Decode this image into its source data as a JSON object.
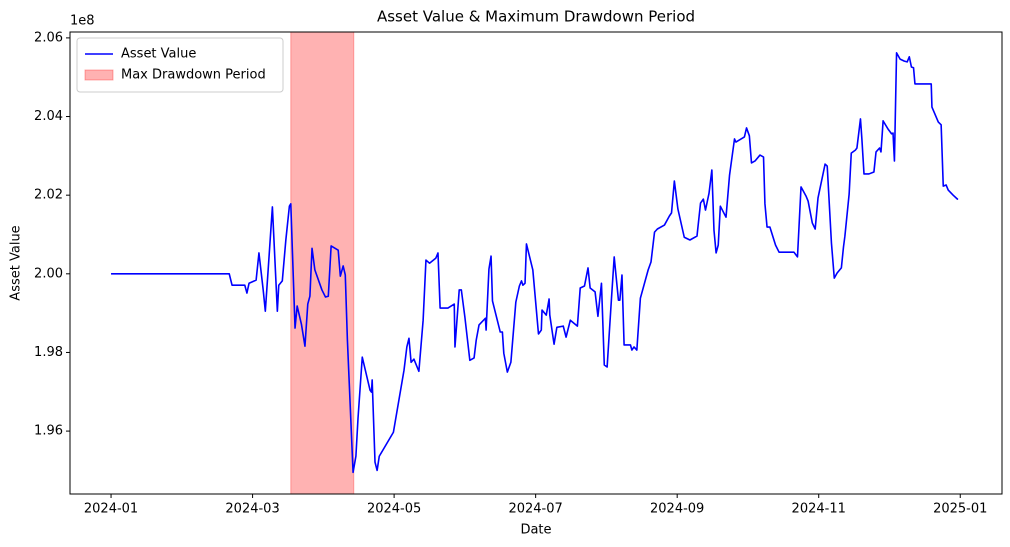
{
  "chart_data": {
    "type": "line",
    "title": "Asset Value & Maximum Drawdown Period",
    "xlabel": "Date",
    "ylabel": "Asset Value",
    "y_offset_label": "1e8",
    "x": [
      0,
      1.67,
      1.71,
      1.89,
      1.92,
      1.95,
      2.05,
      2.09,
      2.15,
      2.18,
      2.22,
      2.28,
      2.35,
      2.37,
      2.42,
      2.47,
      2.52,
      2.54,
      2.6,
      2.63,
      2.69,
      2.74,
      2.78,
      2.81,
      2.84,
      2.88,
      2.98,
      3.03,
      3.07,
      3.11,
      3.21,
      3.24,
      3.28,
      3.31,
      3.34,
      3.42,
      3.46,
      3.49,
      3.55,
      3.66,
      3.68,
      3.69,
      3.73,
      3.76,
      3.79,
      3.99,
      4.14,
      4.18,
      4.21,
      4.24,
      4.28,
      4.35,
      4.41,
      4.45,
      4.5,
      4.59,
      4.62,
      4.65,
      4.76,
      4.85,
      4.86,
      4.92,
      4.95,
      5.0,
      5.07,
      5.13,
      5.16,
      5.2,
      5.29,
      5.3,
      5.34,
      5.37,
      5.39,
      5.5,
      5.53,
      5.55,
      5.6,
      5.65,
      5.72,
      5.77,
      5.8,
      5.82,
      5.85,
      5.87,
      5.96,
      6.04,
      6.08,
      6.09,
      6.15,
      6.19,
      6.2,
      6.26,
      6.3,
      6.39,
      6.43,
      6.49,
      6.59,
      6.63,
      6.69,
      6.74,
      6.77,
      6.84,
      6.88,
      6.93,
      6.97,
      7.01,
      7.07,
      7.11,
      7.17,
      7.19,
      7.22,
      7.25,
      7.34,
      7.36,
      7.39,
      7.43,
      7.48,
      7.59,
      7.63,
      7.68,
      7.72,
      7.82,
      7.89,
      7.92,
      7.96,
      8.01,
      8.1,
      8.18,
      8.28,
      8.33,
      8.37,
      8.4,
      8.45,
      8.49,
      8.52,
      8.55,
      8.58,
      8.61,
      8.69,
      8.74,
      8.81,
      8.83,
      8.95,
      8.98,
      9.02,
      9.05,
      9.1,
      9.17,
      9.22,
      9.24,
      9.27,
      9.31,
      9.39,
      9.44,
      9.65,
      9.7,
      9.75,
      9.82,
      9.85,
      9.91,
      9.95,
      9.99,
      10.09,
      10.12,
      10.18,
      10.22,
      10.26,
      10.32,
      10.35,
      10.37,
      10.43,
      10.46,
      10.52,
      10.54,
      10.59,
      10.61,
      10.64,
      10.71,
      10.78,
      10.81,
      10.86,
      10.88,
      10.91,
      10.98,
      11.03,
      11.05,
      11.07,
      11.1,
      11.15,
      11.21,
      11.25,
      11.28,
      11.31,
      11.34,
      11.36,
      11.55,
      11.59,
      11.6,
      11.69,
      11.73,
      11.76,
      11.8,
      11.83,
      11.9,
      11.96,
      11.97
    ],
    "series": [
      {
        "name": "Asset Value",
        "color": "#0000ff",
        "values": [
          2.0,
          2.0,
          1.9971,
          1.9971,
          1.9951,
          1.9976,
          1.9984,
          2.0053,
          1.9959,
          1.9905,
          2.001,
          2.017,
          1.9905,
          1.9971,
          1.9982,
          2.0086,
          2.0172,
          2.0178,
          1.9862,
          1.9918,
          1.9872,
          1.9816,
          1.9923,
          1.9943,
          2.0065,
          2.001,
          1.9959,
          1.9941,
          1.9943,
          2.0071,
          2.006,
          1.9994,
          2.002,
          1.9997,
          1.9831,
          1.9495,
          1.9536,
          1.9633,
          1.9788,
          1.9704,
          1.9699,
          1.973,
          1.9521,
          1.95,
          1.9536,
          1.9597,
          1.9755,
          1.9814,
          1.9836,
          1.9775,
          1.9783,
          1.9752,
          1.9882,
          2.0035,
          2.0027,
          2.004,
          2.0053,
          1.9913,
          1.9913,
          1.9923,
          1.9814,
          1.9959,
          1.9959,
          1.989,
          1.978,
          1.9786,
          1.9831,
          1.987,
          1.9887,
          1.9857,
          2.0012,
          2.0045,
          1.9931,
          1.9852,
          1.9852,
          1.9798,
          1.975,
          1.9775,
          1.9928,
          1.9969,
          1.9982,
          1.9971,
          1.9976,
          2.0076,
          2.001,
          1.9847,
          1.9857,
          1.9908,
          1.9895,
          1.9936,
          1.9895,
          1.9821,
          1.9864,
          1.9867,
          1.9839,
          1.9882,
          1.9867,
          1.9964,
          1.9969,
          2.0015,
          1.9964,
          1.9954,
          1.9892,
          1.9976,
          1.9768,
          1.9763,
          1.9933,
          2.0043,
          1.9933,
          1.9933,
          1.9997,
          1.9819,
          1.9819,
          1.9806,
          1.9814,
          1.9806,
          1.9938,
          2.001,
          2.003,
          2.0106,
          2.0114,
          2.0124,
          2.0147,
          2.0155,
          2.0236,
          2.0165,
          2.0093,
          2.0086,
          2.0096,
          2.018,
          2.019,
          2.0162,
          2.0205,
          2.0264,
          2.0111,
          2.0053,
          2.0073,
          2.0172,
          2.0144,
          2.0251,
          2.0343,
          2.0335,
          2.0348,
          2.0371,
          2.0351,
          2.0282,
          2.0287,
          2.0302,
          2.0297,
          2.0178,
          2.0119,
          2.0119,
          2.0073,
          2.0055,
          2.0055,
          2.0043,
          2.0221,
          2.0198,
          2.0185,
          2.0129,
          2.0114,
          2.0193,
          2.0279,
          2.0274,
          2.0078,
          1.9989,
          2.0002,
          2.0015,
          2.0068,
          2.0096,
          2.0203,
          2.0307,
          2.0315,
          2.032,
          2.0394,
          2.0343,
          2.0254,
          2.0254,
          2.0259,
          2.031,
          2.032,
          2.031,
          2.0389,
          2.0368,
          2.0356,
          2.0358,
          2.0287,
          2.0562,
          2.0546,
          2.0541,
          2.0539,
          2.0552,
          2.0526,
          2.0524,
          2.0483,
          2.0483,
          2.0483,
          2.0424,
          2.0386,
          2.0379,
          2.0223,
          2.0226,
          2.0213,
          2.02,
          2.019,
          2.019
        ]
      }
    ],
    "shaded_spans": [
      {
        "name": "Max Drawdown Period",
        "color": "#ff0000",
        "alpha": 0.3,
        "x": [
          2.54,
          3.43
        ]
      }
    ],
    "xlim": [
      -0.58,
      12.59
    ],
    "ylim": [
      1.944,
      2.0615
    ],
    "xticks": [
      {
        "value": 0,
        "label": "2024-01"
      },
      {
        "value": 2,
        "label": "2024-03"
      },
      {
        "value": 4,
        "label": "2024-05"
      },
      {
        "value": 6,
        "label": "2024-07"
      },
      {
        "value": 8,
        "label": "2024-09"
      },
      {
        "value": 10,
        "label": "2024-11"
      },
      {
        "value": 12,
        "label": "2025-01"
      }
    ],
    "yticks": [
      1.96,
      1.98,
      {
        "value": 2,
        "label": "2.00"
      },
      2.02,
      2.04,
      2.06
    ],
    "legend": "upper left",
    "grid": false
  }
}
